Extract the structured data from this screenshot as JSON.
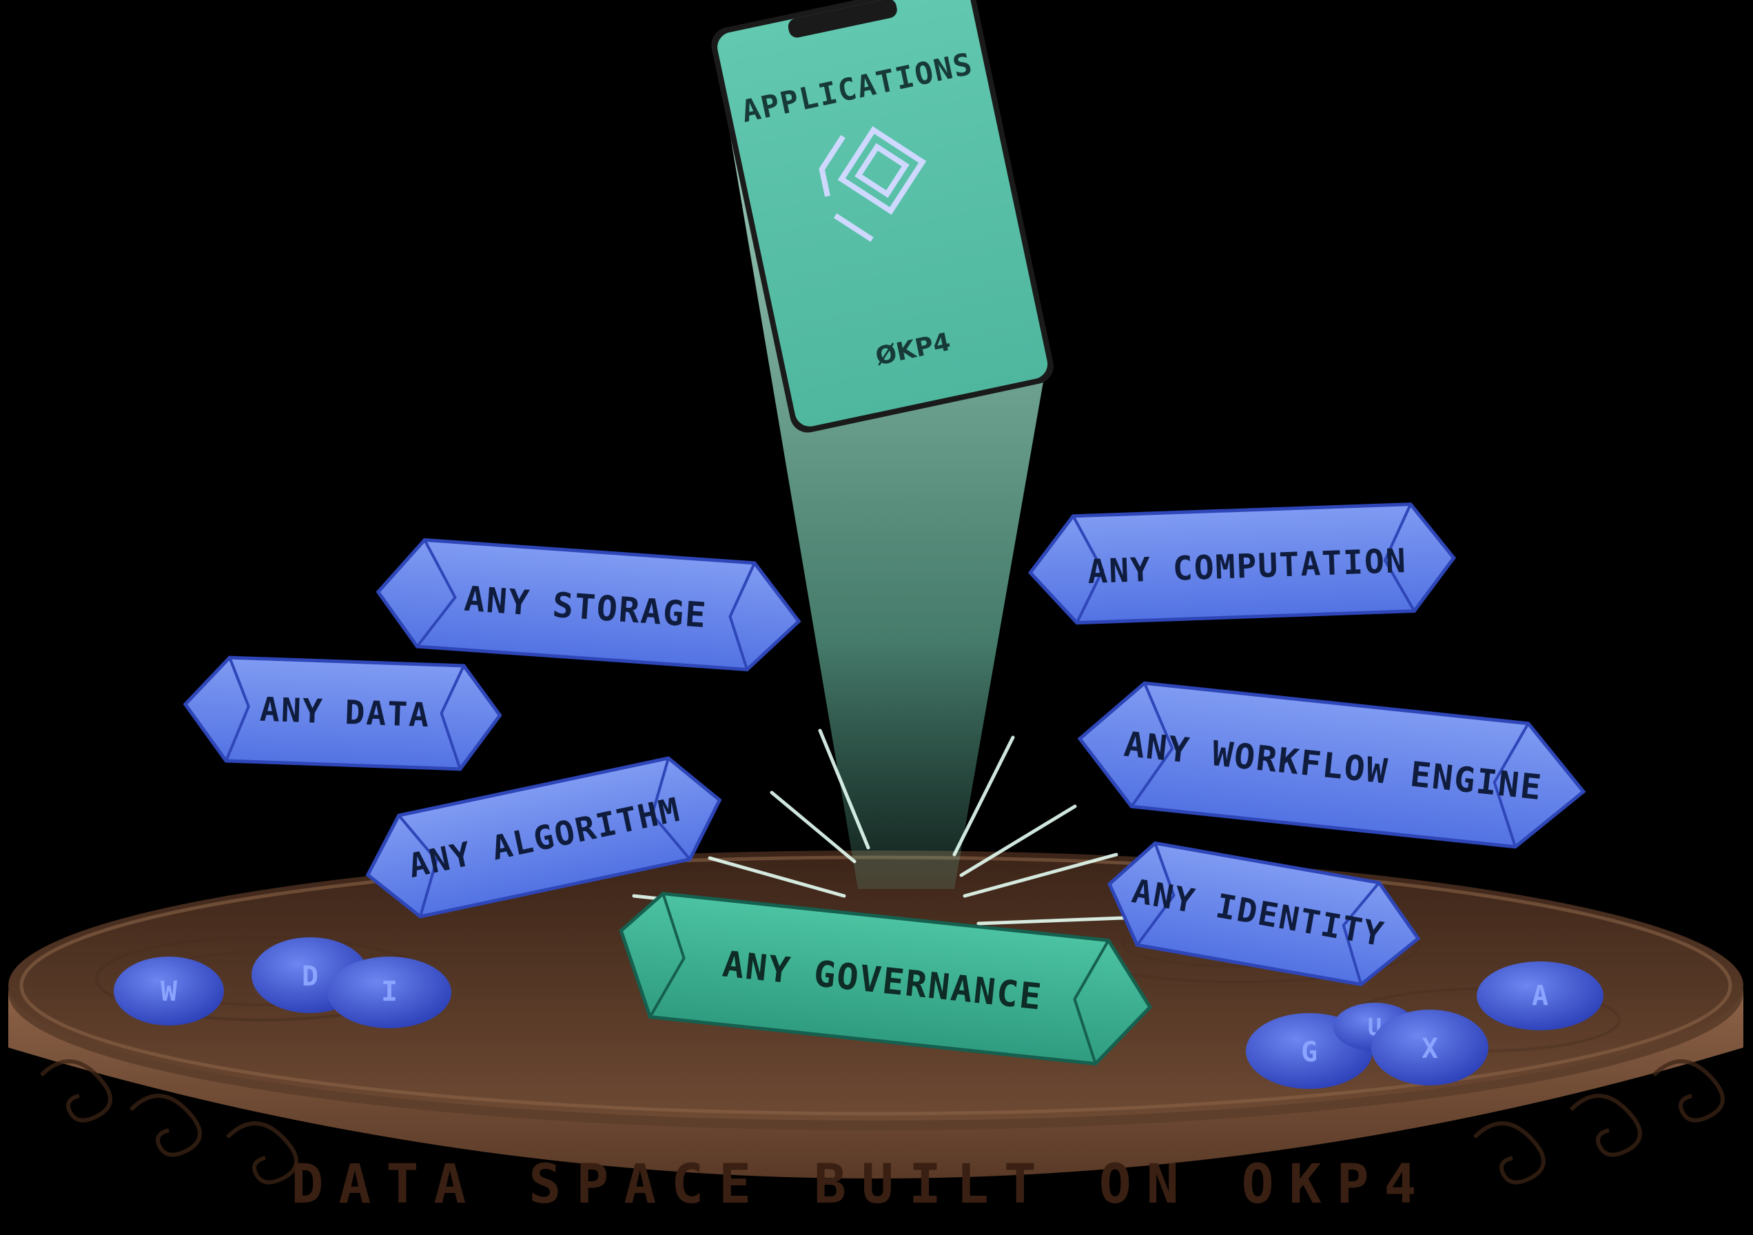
{
  "phone": {
    "title": "APPLICATIONS",
    "brand": "ØKP4"
  },
  "crystals": {
    "storage": "ANY STORAGE",
    "computation": "ANY COMPUTATION",
    "data": "ANY DATA",
    "workflow": "ANY WORKFLOW ENGINE",
    "algorithm": "ANY ALGORITHM",
    "identity": "ANY IDENTITY",
    "governance": "ANY GOVERNANCE"
  },
  "platform": {
    "rim_label": "DATA SPACE BUILT ON OKP4"
  },
  "runes": [
    "W",
    "D",
    "I",
    "G",
    "U",
    "X",
    "A"
  ],
  "colors": {
    "crystal_blue": "#5b7be8",
    "crystal_teal": "#3fb295",
    "phone_teal": "#5ec9ad",
    "platform_brown": "#6b4630",
    "beam": "#bff7e2"
  }
}
